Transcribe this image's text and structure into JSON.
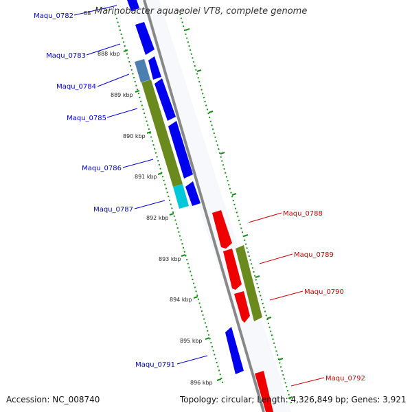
{
  "title": "Marinobacter aquaeolei VT8, complete genome",
  "footer": {
    "accession": "Accession: NC_008740",
    "summary": "Topology: circular; Length: 4,326,849 bp; Genes: 3,921"
  },
  "kbp_ticks": [
    "888 kbp",
    "889 kbp",
    "890 kbp",
    "891 kbp",
    "892 kbp",
    "893 kbp",
    "894 kbp",
    "895 kbp",
    "896 kbp"
  ],
  "partial_tick": "88",
  "genes_forward": [
    "Maqu_0782",
    "Maqu_0783",
    "Maqu_0784",
    "Maqu_0785",
    "Maqu_0786",
    "Maqu_0787",
    "Maqu_0791"
  ],
  "genes_reverse": [
    "Maqu_0788",
    "Maqu_0789",
    "Maqu_0790",
    "Maqu_0792"
  ],
  "colors": {
    "forward_cds": "#0000ee",
    "reverse_cds": "#ee0000",
    "feature_green": "#6b8a1e",
    "feature_cyan": "#00c8d8",
    "feature_steel": "#4a7fb0",
    "backbone": "#888888",
    "tick_green": "#1a8a1a",
    "forward_label": "#0000cc",
    "reverse_label": "#cc0000"
  }
}
